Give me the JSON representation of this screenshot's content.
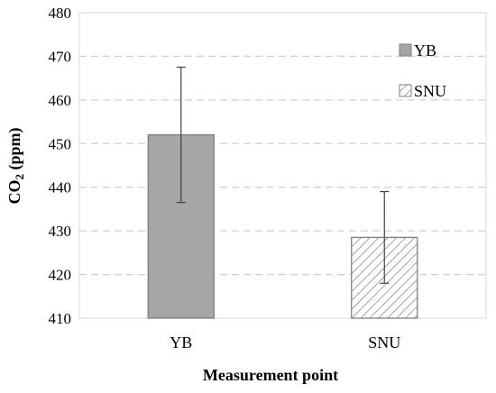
{
  "chart_data": {
    "type": "bar",
    "categories": [
      "YB",
      "SNU"
    ],
    "values": [
      452,
      428.5
    ],
    "error_upper": [
      467.5,
      439
    ],
    "error_lower": [
      436.5,
      418
    ],
    "xlabel": "Measurement point",
    "ylabel_main": "CO",
    "ylabel_sub": "2",
    "ylabel_tail": " (ppm)",
    "ylim": [
      410,
      480
    ],
    "yticks": [
      410,
      420,
      430,
      440,
      450,
      460,
      470,
      480
    ],
    "grid": true,
    "legend_position": "top-right",
    "legend": [
      "YB",
      "SNU"
    ],
    "series_styles": [
      {
        "fill": "#a6a6a6",
        "stroke": "#7f7f7f",
        "pattern": "solid"
      },
      {
        "fill": "#ffffff",
        "stroke": "#7f7f7f",
        "pattern": "diagonal-hatch"
      }
    ]
  }
}
